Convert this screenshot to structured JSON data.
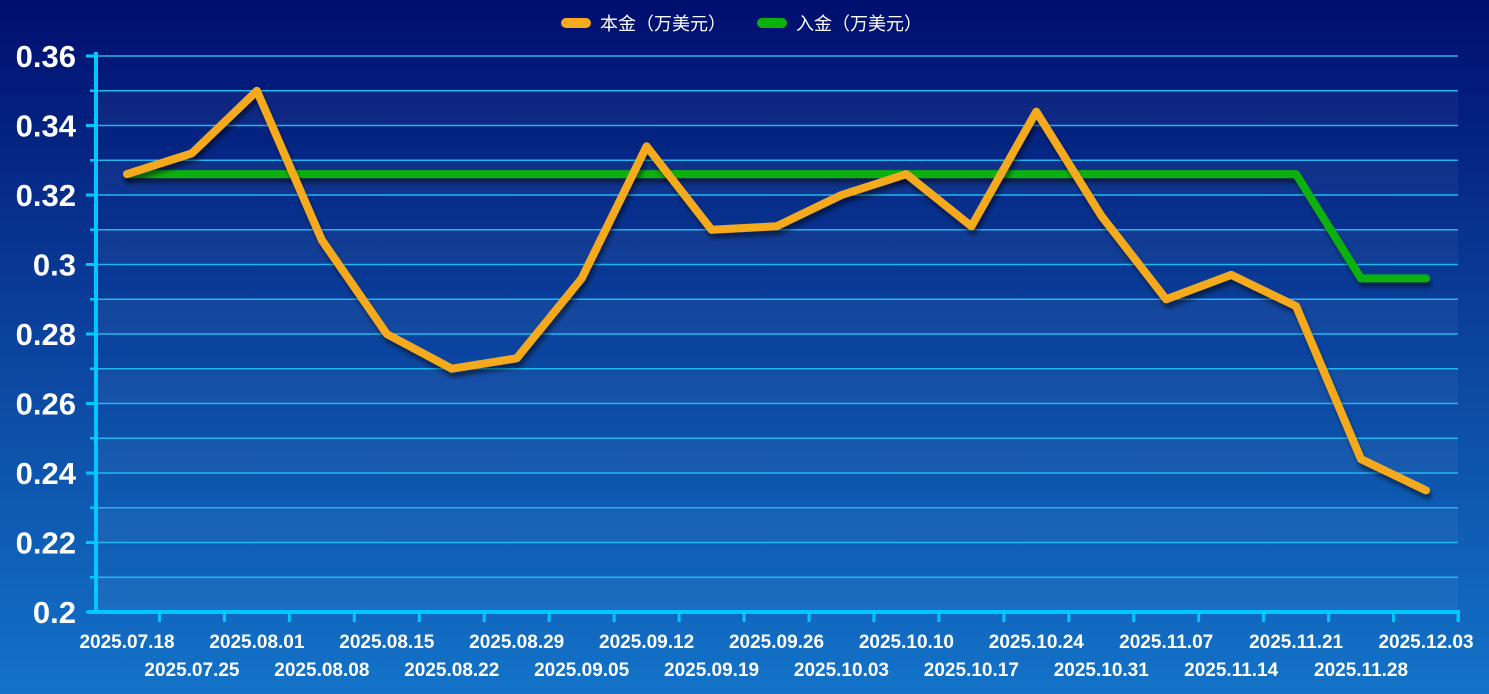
{
  "chart_data": {
    "type": "line",
    "x": [
      "2025.07.18",
      "2025.07.25",
      "2025.08.01",
      "2025.08.08",
      "2025.08.15",
      "2025.08.22",
      "2025.08.29",
      "2025.09.05",
      "2025.09.12",
      "2025.09.19",
      "2025.09.26",
      "2025.10.03",
      "2025.10.10",
      "2025.10.17",
      "2025.10.24",
      "2025.10.31",
      "2025.11.07",
      "2025.11.14",
      "2025.11.21",
      "2025.11.28",
      "2025.12.03"
    ],
    "series": [
      {
        "name": "本金（万美元）",
        "color": "#f5a91c",
        "values": [
          0.326,
          0.332,
          0.35,
          0.307,
          0.28,
          0.27,
          0.273,
          0.296,
          0.334,
          0.31,
          0.311,
          0.32,
          0.326,
          0.311,
          0.344,
          0.314,
          0.29,
          0.297,
          0.288,
          0.244,
          0.235
        ]
      },
      {
        "name": "入金（万美元）",
        "color": "#0db10d",
        "values": [
          0.326,
          0.326,
          0.326,
          0.326,
          0.326,
          0.326,
          0.326,
          0.326,
          0.326,
          0.326,
          0.326,
          0.326,
          0.326,
          0.326,
          0.326,
          0.326,
          0.326,
          0.326,
          0.326,
          0.296,
          0.296
        ]
      }
    ],
    "yticks": [
      "0.2",
      "0.22",
      "0.24",
      "0.26",
      "0.28",
      "0.3",
      "0.32",
      "0.34",
      "0.36"
    ],
    "ylim": [
      0.2,
      0.36
    ],
    "grid": true,
    "legend": "top-center",
    "axis_color": "#00c8ff",
    "grid_color": "#1fb8f0"
  }
}
